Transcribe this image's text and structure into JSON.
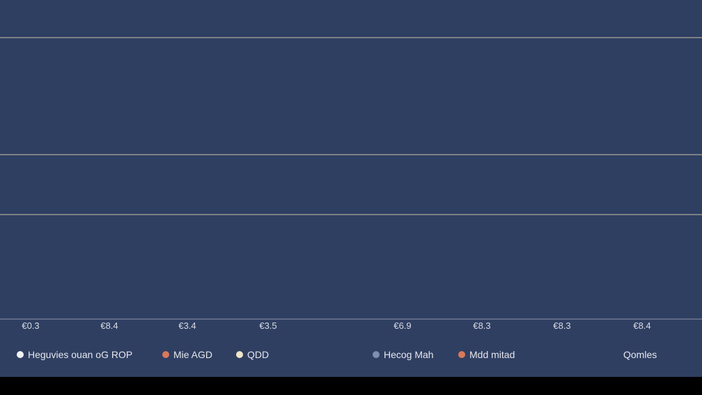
{
  "chart_data": {
    "type": "line",
    "title": "",
    "xlabel": "",
    "ylabel": "",
    "grid": true,
    "x_tick_labels": [
      "€0.3",
      "€8.4",
      "€3.4",
      "€3.5",
      "€6.9",
      "€8.3",
      "€8.3",
      "€8.4"
    ],
    "series": [
      {
        "name": "Heguvies ouan oG ROP",
        "color": "#f2f2f2",
        "values": []
      },
      {
        "name": "Mie AGD",
        "color": "#d9785b",
        "values": []
      },
      {
        "name": "QDD",
        "color": "#efe6c8",
        "values": []
      },
      {
        "name": "Hecog Mah",
        "color": "#7f8fb0",
        "values": []
      },
      {
        "name": "Mdd mitad",
        "color": "#d9785b",
        "values": []
      }
    ],
    "extra_legend_text": "Qomles",
    "legend_position": "bottom"
  },
  "colors": {
    "background": "#2f3f62",
    "gridline": "#c9bfa6",
    "axis": "#8d93a8",
    "bottom_strip": "#000000"
  }
}
